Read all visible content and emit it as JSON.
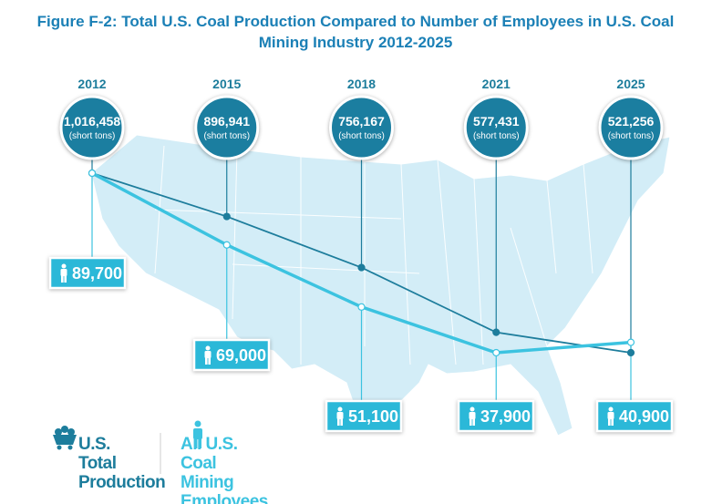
{
  "chart_data": {
    "type": "line",
    "title": "Figure F-2: Total U.S. Coal Production Compared to Number of Employees in U.S. Coal Mining Industry 2012-2025",
    "categories": [
      "2012",
      "2015",
      "2018",
      "2021",
      "2025"
    ],
    "unit_label": "(short tons)",
    "series": [
      {
        "name": "U.S. Total Production",
        "color": "#1d7d9c",
        "values": [
          1016458,
          896941,
          756167,
          577431,
          521256
        ],
        "value_labels": [
          "1,016,458",
          "896,941",
          "756,167",
          "577,431",
          "521,256"
        ]
      },
      {
        "name": "All U.S. Coal Mining Employees",
        "color": "#3cc3e0",
        "values": [
          89700,
          69000,
          51100,
          37900,
          40900
        ],
        "value_labels": [
          "89,700",
          "69,000",
          "51,100",
          "37,900",
          "40,900"
        ]
      }
    ]
  }
}
